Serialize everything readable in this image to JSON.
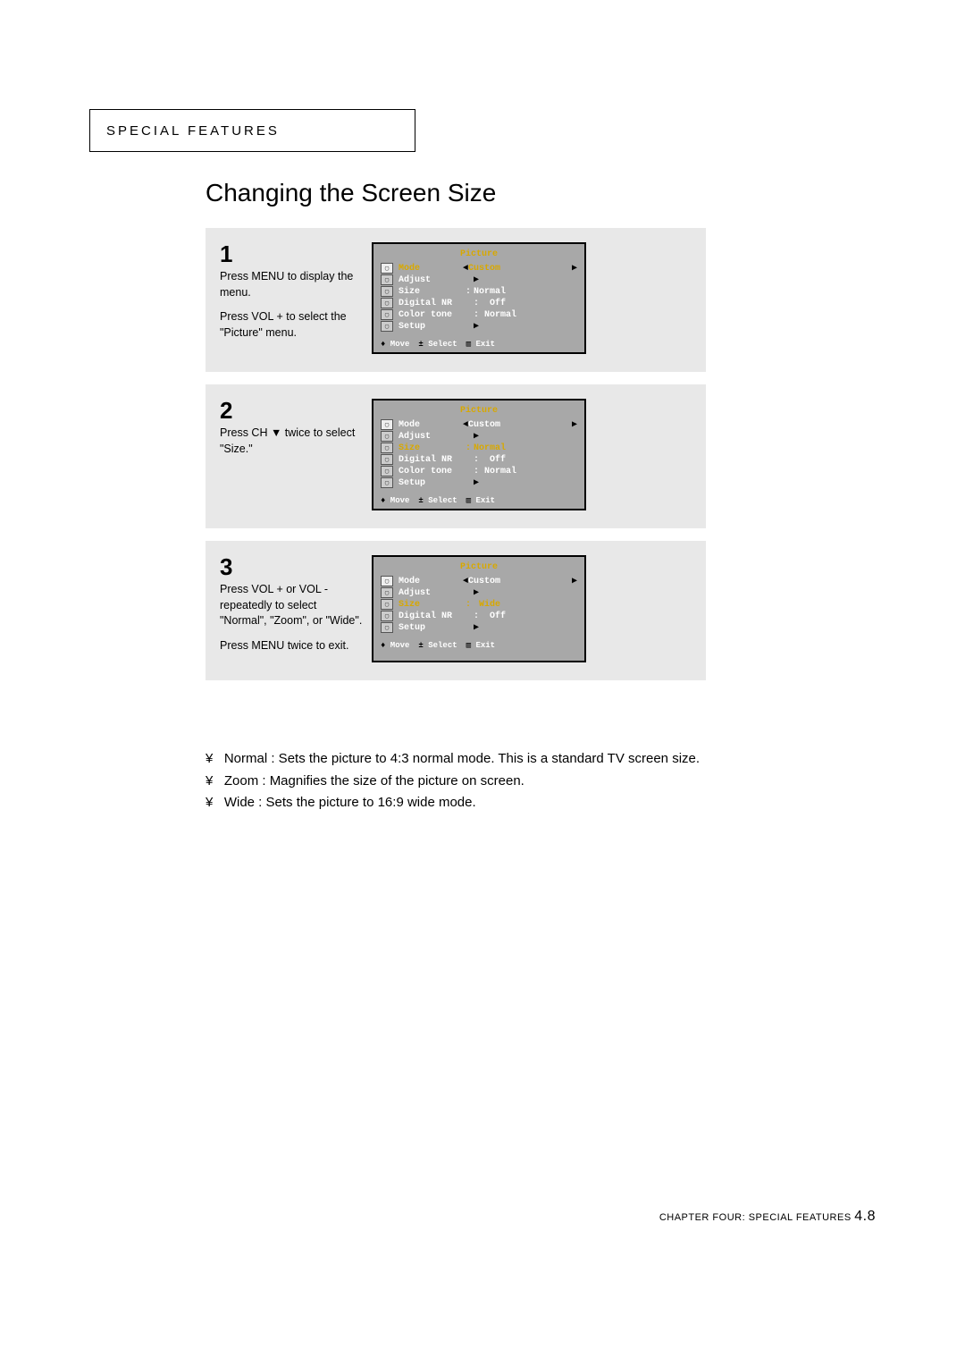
{
  "header": "SPECIAL FEATURES",
  "title": "Changing the Screen Size",
  "steps": [
    {
      "num": "1",
      "paras": [
        "Press MENU to display the menu.",
        "Press VOL + to select the \"Picture\" menu."
      ],
      "osd": {
        "title": "Picture",
        "highlight": 0,
        "rows": [
          {
            "label": "Mode",
            "sep": "",
            "value": "Custom",
            "arrows": "lr"
          },
          {
            "label": "Adjust",
            "sep": "",
            "value": "",
            "arrows": "r"
          },
          {
            "label": "Size",
            "sep": ":",
            "value": "Normal",
            "arrows": ""
          },
          {
            "label": "Digital NR",
            "sep": "",
            "value": ":  Off",
            "arrows": ""
          },
          {
            "label": "Color tone",
            "sep": "",
            "value": ": Normal",
            "arrows": ""
          },
          {
            "label": "Setup",
            "sep": "",
            "value": "",
            "arrows": "r"
          }
        ],
        "footer": {
          "move": "Move",
          "select": "Select",
          "exit": "Exit"
        }
      }
    },
    {
      "num": "2",
      "paras": [
        "Press CH ▼ twice to select \"Size.\""
      ],
      "osd": {
        "title": "Picture",
        "highlight": 2,
        "rows": [
          {
            "label": "Mode",
            "sep": "",
            "value": "Custom",
            "arrows": "lr"
          },
          {
            "label": "Adjust",
            "sep": "",
            "value": "",
            "arrows": "r"
          },
          {
            "label": "Size",
            "sep": ":",
            "value": "Normal",
            "arrows": ""
          },
          {
            "label": "Digital NR",
            "sep": "",
            "value": ":  Off",
            "arrows": ""
          },
          {
            "label": "Color tone",
            "sep": "",
            "value": ": Normal",
            "arrows": ""
          },
          {
            "label": "Setup",
            "sep": "",
            "value": "",
            "arrows": "r"
          }
        ],
        "footer": {
          "move": "Move",
          "select": "Select",
          "exit": "Exit"
        }
      }
    },
    {
      "num": "3",
      "paras": [
        "Press VOL + or VOL - repeatedly to select \"Normal\", \"Zoom\", or \"Wide\".",
        "Press MENU twice to exit."
      ],
      "osd": {
        "title": "Picture",
        "highlight": 2,
        "rows": [
          {
            "label": "Mode",
            "sep": "",
            "value": "Custom",
            "arrows": "lr"
          },
          {
            "label": "Adjust",
            "sep": "",
            "value": "",
            "arrows": "r"
          },
          {
            "label": "Size",
            "sep": ":",
            "value": " Wide",
            "arrows": ""
          },
          {
            "label": "Digital NR",
            "sep": "",
            "value": ":  Off",
            "arrows": ""
          },
          {
            "label": "Setup",
            "sep": "",
            "value": "",
            "arrows": "r"
          }
        ],
        "footer": {
          "move": "Move",
          "select": "Select",
          "exit": "Exit"
        }
      }
    }
  ],
  "notes": [
    "Normal : Sets the picture to 4:3 normal mode. This is a standard TV screen size.",
    "Zoom : Magnifies the size of the picture on screen.",
    "Wide : Sets the picture to 16:9 wide mode."
  ],
  "footer": {
    "chapter": "CHAPTER FOUR: SPECIAL FEATURES",
    "page": "4.8"
  }
}
